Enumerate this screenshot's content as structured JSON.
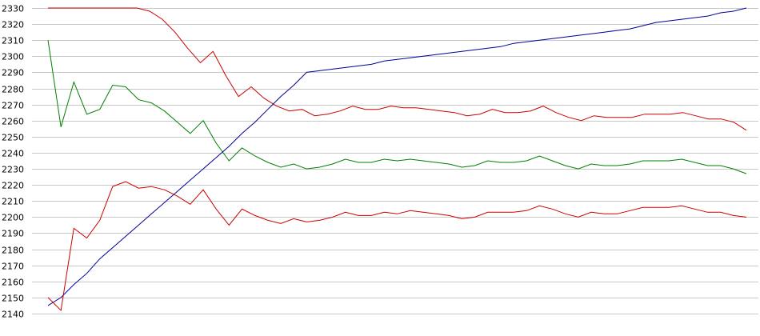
{
  "chart_data": {
    "type": "line",
    "title": "",
    "xlabel": "",
    "ylabel": "",
    "ylim": [
      2140,
      2330
    ],
    "y_ticks": [
      "2330",
      "2320",
      "2310",
      "2300",
      "2290",
      "2280",
      "2270",
      "2260",
      "2250",
      "2240",
      "2230",
      "2220",
      "2210",
      "2200",
      "2190",
      "2180",
      "2170",
      "2160",
      "2150",
      "2140"
    ],
    "grid": true,
    "legend": "none",
    "series": [
      {
        "color": "#cc0000",
        "values": [
          2330,
          2330,
          2330,
          2330,
          2330,
          2330,
          2330,
          2330,
          2328,
          2323,
          2315,
          2305,
          2296,
          2303,
          2288,
          2275,
          2281,
          2274,
          2269,
          2266,
          2267,
          2263,
          2264,
          2266,
          2269,
          2267,
          2267,
          2269,
          2268,
          2268,
          2267,
          2266,
          2265,
          2263,
          2264,
          2267,
          2265,
          2265,
          2266,
          2269,
          2265,
          2262,
          2260,
          2263,
          2262,
          2262,
          2262,
          2264,
          2264,
          2264,
          2265,
          2263,
          2261,
          2261,
          2259,
          2254
        ]
      },
      {
        "color": "#008000",
        "values": [
          2310,
          2256,
          2284,
          2264,
          2267,
          2282,
          2281,
          2273,
          2271,
          2266,
          2259,
          2252,
          2260,
          2246,
          2235,
          2243,
          2238,
          2234,
          2231,
          2233,
          2230,
          2231,
          2233,
          2236,
          2234,
          2234,
          2236,
          2235,
          2236,
          2235,
          2234,
          2233,
          2231,
          2232,
          2235,
          2234,
          2234,
          2235,
          2238,
          2235,
          2232,
          2230,
          2233,
          2232,
          2232,
          2233,
          2235,
          2235,
          2235,
          2236,
          2234,
          2232,
          2232,
          2230,
          2227
        ]
      },
      {
        "color": "#000099",
        "values": [
          2145,
          2150,
          2158,
          2165,
          2174,
          2181,
          2188,
          2195,
          2202,
          2209,
          2216,
          2223,
          2230,
          2237,
          2244,
          2252,
          2259,
          2267,
          2275,
          2282,
          2290,
          2291,
          2292,
          2293,
          2294,
          2295,
          2297,
          2298,
          2299,
          2300,
          2301,
          2302,
          2303,
          2304,
          2305,
          2306,
          2308,
          2309,
          2310,
          2311,
          2312,
          2313,
          2314,
          2315,
          2316,
          2317,
          2319,
          2321,
          2322,
          2323,
          2324,
          2325,
          2327,
          2328,
          2330
        ]
      },
      {
        "color": "#cc0000",
        "values": [
          2150,
          2142,
          2193,
          2187,
          2198,
          2219,
          2222,
          2218,
          2219,
          2217,
          2213,
          2208,
          2217,
          2205,
          2195,
          2205,
          2201,
          2198,
          2196,
          2199,
          2197,
          2198,
          2200,
          2203,
          2201,
          2201,
          2203,
          2202,
          2204,
          2203,
          2202,
          2201,
          2199,
          2200,
          2203,
          2203,
          2203,
          2204,
          2207,
          2205,
          2202,
          2200,
          2203,
          2202,
          2202,
          2204,
          2206,
          2206,
          2206,
          2207,
          2205,
          2203,
          2203,
          2201,
          2200
        ]
      }
    ]
  }
}
